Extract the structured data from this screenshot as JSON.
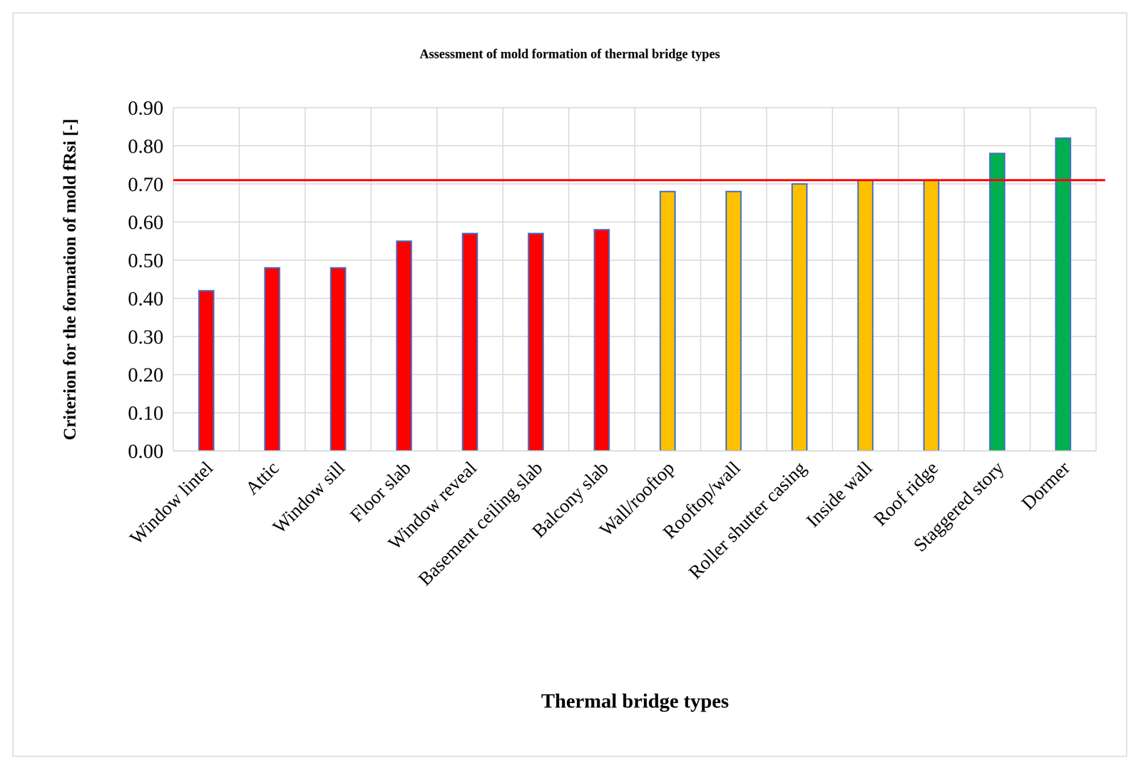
{
  "chart_data": {
    "type": "bar",
    "title": "Assessment of mold formation of thermal bridge types",
    "x_label": "Thermal bridge types",
    "y_label": "Criterion for the formation of mold fRsi [-]",
    "categories": [
      "Window lintel",
      "Attic",
      "Window sill",
      "Floor slab",
      "Window reveal",
      "Basement ceiling slab",
      "Balcony slab",
      "Wall/rooftop",
      "Rooftop/wall",
      "Roller shutter casing",
      "Inside wall",
      "Roof ridge",
      "Staggered story",
      "Dormer"
    ],
    "values": [
      0.42,
      0.48,
      0.48,
      0.55,
      0.57,
      0.57,
      0.58,
      0.68,
      0.68,
      0.7,
      0.71,
      0.71,
      0.78,
      0.82
    ],
    "colors": [
      "#ff0000",
      "#ff0000",
      "#ff0000",
      "#ff0000",
      "#ff0000",
      "#ff0000",
      "#ff0000",
      "#ffc000",
      "#ffc000",
      "#ffc000",
      "#ffc000",
      "#ffc000",
      "#00b050",
      "#00b050"
    ],
    "threshold": 0.71,
    "ylim": [
      0,
      0.9
    ],
    "yticks": [
      {
        "value": 0,
        "label": "0.00"
      },
      {
        "value": 0.1,
        "label": "0.10"
      },
      {
        "value": 0.2,
        "label": "0.20"
      },
      {
        "value": 0.3,
        "label": "0.30"
      },
      {
        "value": 0.4,
        "label": "0.40"
      },
      {
        "value": 0.5,
        "label": "0.50"
      },
      {
        "value": 0.6,
        "label": "0.60"
      },
      {
        "value": 0.7,
        "label": "0.70"
      },
      {
        "value": 0.8,
        "label": "0.80"
      },
      {
        "value": 0.9,
        "label": "0.90"
      }
    ],
    "grid": true
  }
}
